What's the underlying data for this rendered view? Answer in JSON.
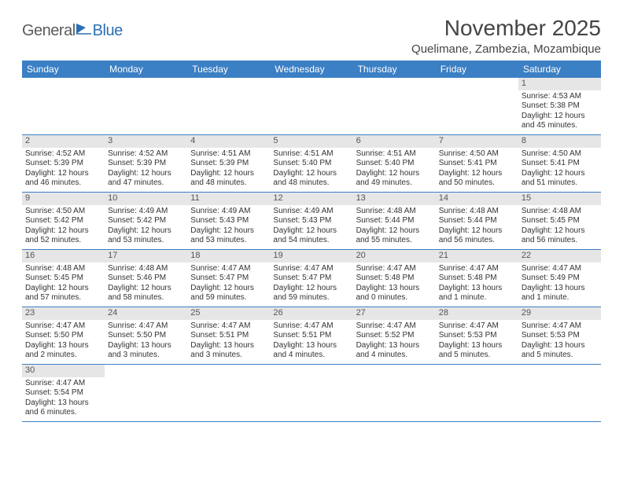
{
  "brand": {
    "part1": "General",
    "part2": "Blue"
  },
  "title": "November 2025",
  "location": "Quelimane, Zambezia, Mozambique",
  "weekdays": [
    "Sunday",
    "Monday",
    "Tuesday",
    "Wednesday",
    "Thursday",
    "Friday",
    "Saturday"
  ],
  "colors": {
    "header_bg": "#3b7fc4",
    "header_text": "#ffffff",
    "daynum_bg": "#e6e6e6",
    "text": "#333333",
    "rule": "#3b7fc4"
  },
  "first_weekday_index": 6,
  "days": [
    {
      "n": 1,
      "sunrise": "4:53 AM",
      "sunset": "5:38 PM",
      "daylight": "12 hours and 45 minutes."
    },
    {
      "n": 2,
      "sunrise": "4:52 AM",
      "sunset": "5:39 PM",
      "daylight": "12 hours and 46 minutes."
    },
    {
      "n": 3,
      "sunrise": "4:52 AM",
      "sunset": "5:39 PM",
      "daylight": "12 hours and 47 minutes."
    },
    {
      "n": 4,
      "sunrise": "4:51 AM",
      "sunset": "5:39 PM",
      "daylight": "12 hours and 48 minutes."
    },
    {
      "n": 5,
      "sunrise": "4:51 AM",
      "sunset": "5:40 PM",
      "daylight": "12 hours and 48 minutes."
    },
    {
      "n": 6,
      "sunrise": "4:51 AM",
      "sunset": "5:40 PM",
      "daylight": "12 hours and 49 minutes."
    },
    {
      "n": 7,
      "sunrise": "4:50 AM",
      "sunset": "5:41 PM",
      "daylight": "12 hours and 50 minutes."
    },
    {
      "n": 8,
      "sunrise": "4:50 AM",
      "sunset": "5:41 PM",
      "daylight": "12 hours and 51 minutes."
    },
    {
      "n": 9,
      "sunrise": "4:50 AM",
      "sunset": "5:42 PM",
      "daylight": "12 hours and 52 minutes."
    },
    {
      "n": 10,
      "sunrise": "4:49 AM",
      "sunset": "5:42 PM",
      "daylight": "12 hours and 53 minutes."
    },
    {
      "n": 11,
      "sunrise": "4:49 AM",
      "sunset": "5:43 PM",
      "daylight": "12 hours and 53 minutes."
    },
    {
      "n": 12,
      "sunrise": "4:49 AM",
      "sunset": "5:43 PM",
      "daylight": "12 hours and 54 minutes."
    },
    {
      "n": 13,
      "sunrise": "4:48 AM",
      "sunset": "5:44 PM",
      "daylight": "12 hours and 55 minutes."
    },
    {
      "n": 14,
      "sunrise": "4:48 AM",
      "sunset": "5:44 PM",
      "daylight": "12 hours and 56 minutes."
    },
    {
      "n": 15,
      "sunrise": "4:48 AM",
      "sunset": "5:45 PM",
      "daylight": "12 hours and 56 minutes."
    },
    {
      "n": 16,
      "sunrise": "4:48 AM",
      "sunset": "5:45 PM",
      "daylight": "12 hours and 57 minutes."
    },
    {
      "n": 17,
      "sunrise": "4:48 AM",
      "sunset": "5:46 PM",
      "daylight": "12 hours and 58 minutes."
    },
    {
      "n": 18,
      "sunrise": "4:47 AM",
      "sunset": "5:47 PM",
      "daylight": "12 hours and 59 minutes."
    },
    {
      "n": 19,
      "sunrise": "4:47 AM",
      "sunset": "5:47 PM",
      "daylight": "12 hours and 59 minutes."
    },
    {
      "n": 20,
      "sunrise": "4:47 AM",
      "sunset": "5:48 PM",
      "daylight": "13 hours and 0 minutes."
    },
    {
      "n": 21,
      "sunrise": "4:47 AM",
      "sunset": "5:48 PM",
      "daylight": "13 hours and 1 minute."
    },
    {
      "n": 22,
      "sunrise": "4:47 AM",
      "sunset": "5:49 PM",
      "daylight": "13 hours and 1 minute."
    },
    {
      "n": 23,
      "sunrise": "4:47 AM",
      "sunset": "5:50 PM",
      "daylight": "13 hours and 2 minutes."
    },
    {
      "n": 24,
      "sunrise": "4:47 AM",
      "sunset": "5:50 PM",
      "daylight": "13 hours and 3 minutes."
    },
    {
      "n": 25,
      "sunrise": "4:47 AM",
      "sunset": "5:51 PM",
      "daylight": "13 hours and 3 minutes."
    },
    {
      "n": 26,
      "sunrise": "4:47 AM",
      "sunset": "5:51 PM",
      "daylight": "13 hours and 4 minutes."
    },
    {
      "n": 27,
      "sunrise": "4:47 AM",
      "sunset": "5:52 PM",
      "daylight": "13 hours and 4 minutes."
    },
    {
      "n": 28,
      "sunrise": "4:47 AM",
      "sunset": "5:53 PM",
      "daylight": "13 hours and 5 minutes."
    },
    {
      "n": 29,
      "sunrise": "4:47 AM",
      "sunset": "5:53 PM",
      "daylight": "13 hours and 5 minutes."
    },
    {
      "n": 30,
      "sunrise": "4:47 AM",
      "sunset": "5:54 PM",
      "daylight": "13 hours and 6 minutes."
    }
  ],
  "labels": {
    "sunrise": "Sunrise: ",
    "sunset": "Sunset: ",
    "daylight": "Daylight: "
  }
}
